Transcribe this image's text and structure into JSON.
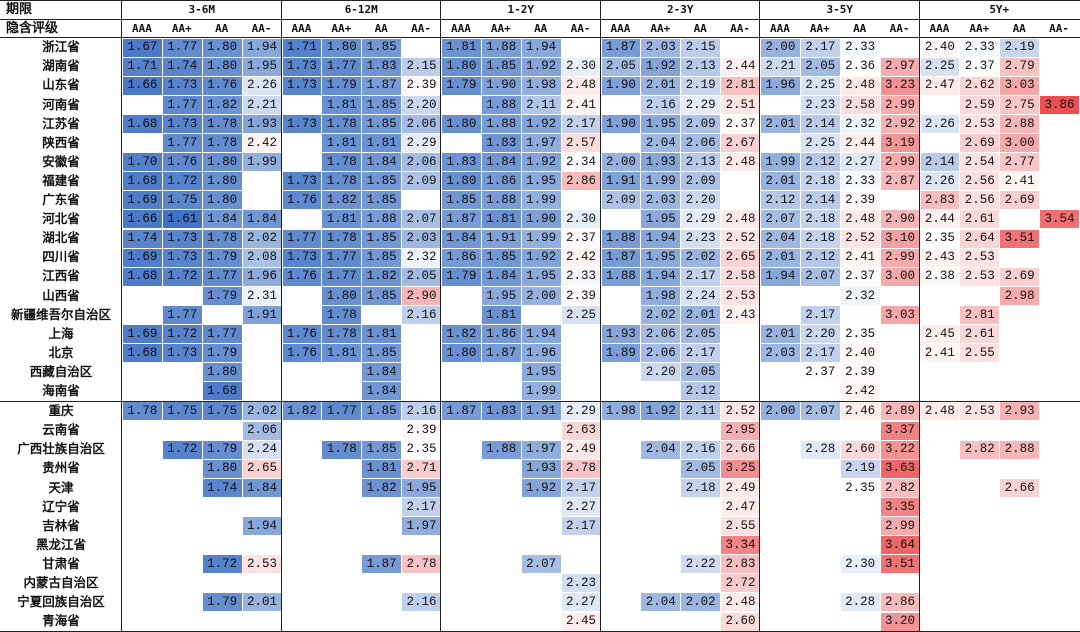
{
  "header": {
    "period_label": "期限",
    "rating_label": "隐含评级",
    "periods": [
      "3-6M",
      "6-12M",
      "1-2Y",
      "2-3Y",
      "3-5Y",
      "5Y+"
    ],
    "ratings": [
      "AAA",
      "AA+",
      "AA",
      "AA-"
    ]
  },
  "colors": {
    "low": "#3f71c4",
    "mid": "#ffffff",
    "high": "#ec4f52",
    "row_separator": "#222222"
  },
  "color_scale": {
    "min": 1.61,
    "mid": 2.35,
    "max": 3.86
  },
  "rows": [
    {
      "name": "浙江省",
      "values": [
        "1.67",
        "1.77",
        "1.80",
        "1.94",
        "1.71",
        "1.80",
        "1.85",
        "",
        "1.81",
        "1.88",
        "1.94",
        "",
        "1.87",
        "2.03",
        "2.15",
        "",
        "2.00",
        "2.17",
        "2.33",
        "",
        "2.40",
        "2.33",
        "2.19",
        ""
      ]
    },
    {
      "name": "湖南省",
      "values": [
        "1.71",
        "1.74",
        "1.80",
        "1.95",
        "1.73",
        "1.77",
        "1.83",
        "2.15",
        "1.80",
        "1.85",
        "1.92",
        "2.30",
        "2.05",
        "1.92",
        "2.13",
        "2.44",
        "2.21",
        "2.05",
        "2.36",
        "2.97",
        "2.25",
        "2.37",
        "2.79",
        ""
      ]
    },
    {
      "name": "山东省",
      "values": [
        "1.66",
        "1.73",
        "1.76",
        "2.26",
        "1.73",
        "1.79",
        "1.87",
        "2.39",
        "1.79",
        "1.90",
        "1.98",
        "2.48",
        "1.90",
        "2.01",
        "2.19",
        "2.81",
        "1.96",
        "2.25",
        "2.48",
        "3.23",
        "2.47",
        "2.62",
        "3.03",
        ""
      ]
    },
    {
      "name": "河南省",
      "values": [
        "",
        "1.77",
        "1.82",
        "2.21",
        "",
        "1.81",
        "1.85",
        "2.20",
        "",
        "1.88",
        "2.11",
        "2.41",
        "",
        "2.16",
        "2.29",
        "2.51",
        "",
        "2.23",
        "2.58",
        "2.99",
        "",
        "2.59",
        "2.75",
        "3.86"
      ]
    },
    {
      "name": "江苏省",
      "values": [
        "1.68",
        "1.73",
        "1.78",
        "1.93",
        "1.73",
        "1.78",
        "1.85",
        "2.06",
        "1.80",
        "1.88",
        "1.92",
        "2.17",
        "1.90",
        "1.95",
        "2.09",
        "2.37",
        "2.01",
        "2.14",
        "2.32",
        "2.92",
        "2.26",
        "2.53",
        "2.88",
        ""
      ]
    },
    {
      "name": "陕西省",
      "values": [
        "",
        "1.77",
        "1.78",
        "2.42",
        "",
        "1.81",
        "1.81",
        "2.29",
        "",
        "1.83",
        "1.97",
        "2.57",
        "",
        "2.04",
        "2.06",
        "2.67",
        "",
        "2.25",
        "2.44",
        "3.19",
        "",
        "2.69",
        "3.00",
        ""
      ]
    },
    {
      "name": "安徽省",
      "values": [
        "1.70",
        "1.76",
        "1.80",
        "1.99",
        "",
        "1.78",
        "1.84",
        "2.06",
        "1.83",
        "1.84",
        "1.92",
        "2.34",
        "2.00",
        "1.93",
        "2.13",
        "2.48",
        "1.99",
        "2.12",
        "2.27",
        "2.99",
        "2.14",
        "2.54",
        "2.77",
        ""
      ]
    },
    {
      "name": "福建省",
      "values": [
        "1.68",
        "1.72",
        "1.80",
        "",
        "1.73",
        "1.78",
        "1.85",
        "2.09",
        "1.80",
        "1.86",
        "1.95",
        "2.86",
        "1.91",
        "1.99",
        "2.09",
        "",
        "2.01",
        "2.18",
        "2.33",
        "2.87",
        "2.26",
        "2.56",
        "2.41",
        ""
      ]
    },
    {
      "name": "广东省",
      "values": [
        "1.69",
        "1.75",
        "1.80",
        "",
        "1.76",
        "1.82",
        "1.85",
        "",
        "1.85",
        "1.88",
        "1.99",
        "",
        "2.09",
        "2.03",
        "2.20",
        "",
        "2.12",
        "2.14",
        "2.39",
        "",
        "2.83",
        "2.56",
        "2.69",
        ""
      ]
    },
    {
      "name": "河北省",
      "values": [
        "1.66",
        "1.61",
        "1.84",
        "1.84",
        "",
        "1.81",
        "1.88",
        "2.07",
        "1.87",
        "1.81",
        "1.90",
        "2.30",
        "",
        "1.95",
        "2.29",
        "2.48",
        "2.07",
        "2.18",
        "2.48",
        "2.90",
        "2.44",
        "2.61",
        "",
        "3.54"
      ]
    },
    {
      "name": "湖北省",
      "values": [
        "1.74",
        "1.73",
        "1.78",
        "2.02",
        "1.77",
        "1.78",
        "1.85",
        "2.03",
        "1.84",
        "1.91",
        "1.99",
        "2.37",
        "1.88",
        "1.94",
        "2.23",
        "2.52",
        "2.04",
        "2.18",
        "2.52",
        "3.10",
        "2.35",
        "2.64",
        "3.51",
        ""
      ]
    },
    {
      "name": "四川省",
      "values": [
        "1.69",
        "1.73",
        "1.79",
        "2.08",
        "1.73",
        "1.77",
        "1.85",
        "2.32",
        "1.86",
        "1.85",
        "1.92",
        "2.42",
        "1.87",
        "1.95",
        "2.02",
        "2.65",
        "2.01",
        "2.12",
        "2.41",
        "2.99",
        "2.43",
        "2.53",
        "",
        ""
      ]
    },
    {
      "name": "江西省",
      "values": [
        "1.68",
        "1.72",
        "1.77",
        "1.96",
        "1.76",
        "1.77",
        "1.82",
        "2.05",
        "1.79",
        "1.84",
        "1.95",
        "2.33",
        "1.88",
        "1.94",
        "2.17",
        "2.58",
        "1.94",
        "2.07",
        "2.37",
        "3.00",
        "2.38",
        "2.53",
        "2.69",
        ""
      ]
    },
    {
      "name": "山西省",
      "values": [
        "",
        "",
        "1.79",
        "2.31",
        "",
        "1.80",
        "1.85",
        "2.90",
        "",
        "1.95",
        "2.00",
        "2.39",
        "",
        "1.98",
        "2.24",
        "2.53",
        "",
        "",
        "2.32",
        "",
        "",
        "",
        "2.98",
        ""
      ]
    },
    {
      "name": "新疆维吾尔自治区",
      "values": [
        "",
        "1.77",
        "",
        "1.91",
        "",
        "1.78",
        "",
        "2.16",
        "",
        "1.81",
        "",
        "2.25",
        "",
        "2.02",
        "2.01",
        "2.43",
        "",
        "2.17",
        "",
        "3.03",
        "",
        "2.81",
        "",
        ""
      ]
    },
    {
      "name": "上海",
      "values": [
        "1.69",
        "1.72",
        "1.77",
        "",
        "1.76",
        "1.78",
        "1.81",
        "",
        "1.82",
        "1.86",
        "1.94",
        "",
        "1.93",
        "2.06",
        "2.05",
        "",
        "2.01",
        "2.20",
        "2.35",
        "",
        "2.45",
        "2.61",
        "",
        ""
      ]
    },
    {
      "name": "北京",
      "values": [
        "1.68",
        "1.73",
        "1.79",
        "",
        "1.76",
        "1.81",
        "1.85",
        "",
        "1.80",
        "1.87",
        "1.96",
        "",
        "1.89",
        "2.06",
        "2.17",
        "",
        "2.03",
        "2.17",
        "2.40",
        "",
        "2.41",
        "2.55",
        "",
        ""
      ]
    },
    {
      "name": "西藏自治区",
      "values": [
        "",
        "",
        "1.80",
        "",
        "",
        "",
        "1.84",
        "",
        "",
        "",
        "1.95",
        "",
        "",
        "2.20",
        "2.05",
        "",
        "",
        "2.37",
        "2.39",
        "",
        "",
        "",
        "",
        ""
      ]
    },
    {
      "name": "海南省",
      "values": [
        "",
        "",
        "1.68",
        "",
        "",
        "",
        "1.84",
        "",
        "",
        "",
        "1.99",
        "",
        "",
        "",
        "2.12",
        "",
        "",
        "",
        "2.42",
        "",
        "",
        "",
        "",
        ""
      ]
    },
    {
      "name": "重庆",
      "values": [
        "1.78",
        "1.75",
        "1.75",
        "2.02",
        "1.82",
        "1.77",
        "1.85",
        "2.16",
        "1.87",
        "1.83",
        "1.91",
        "2.29",
        "1.98",
        "1.92",
        "2.11",
        "2.52",
        "2.00",
        "2.07",
        "2.46",
        "2.89",
        "2.48",
        "2.53",
        "2.93",
        ""
      ]
    },
    {
      "name": "云南省",
      "values": [
        "",
        "",
        "",
        "2.06",
        "",
        "",
        "",
        "2.39",
        "",
        "",
        "",
        "2.63",
        "",
        "",
        "",
        "2.95",
        "",
        "",
        "",
        "3.37",
        "",
        "",
        "",
        ""
      ]
    },
    {
      "name": "广西壮族自治区",
      "values": [
        "",
        "1.72",
        "1.79",
        "2.24",
        "",
        "1.78",
        "1.85",
        "2.35",
        "",
        "1.88",
        "1.97",
        "2.49",
        "",
        "2.04",
        "2.16",
        "2.66",
        "",
        "2.28",
        "2.60",
        "3.22",
        "",
        "2.82",
        "2.88",
        ""
      ]
    },
    {
      "name": "贵州省",
      "values": [
        "",
        "",
        "1.80",
        "2.65",
        "",
        "",
        "1.81",
        "2.71",
        "",
        "",
        "1.93",
        "2.78",
        "",
        "",
        "2.05",
        "3.25",
        "",
        "",
        "2.19",
        "3.63",
        "",
        "",
        "",
        ""
      ]
    },
    {
      "name": "天津",
      "values": [
        "",
        "",
        "1.74",
        "1.84",
        "",
        "",
        "1.82",
        "1.95",
        "",
        "",
        "1.92",
        "2.17",
        "",
        "",
        "2.18",
        "2.49",
        "",
        "",
        "2.35",
        "2.82",
        "",
        "",
        "2.66",
        ""
      ]
    },
    {
      "name": "辽宁省",
      "values": [
        "",
        "",
        "",
        "",
        "",
        "",
        "",
        "2.17",
        "",
        "",
        "",
        "2.27",
        "",
        "",
        "",
        "2.47",
        "",
        "",
        "",
        "3.35",
        "",
        "",
        "",
        ""
      ]
    },
    {
      "name": "吉林省",
      "values": [
        "",
        "",
        "",
        "1.94",
        "",
        "",
        "",
        "1.97",
        "",
        "",
        "",
        "2.17",
        "",
        "",
        "",
        "2.55",
        "",
        "",
        "",
        "2.99",
        "",
        "",
        "",
        ""
      ]
    },
    {
      "name": "黑龙江省",
      "values": [
        "",
        "",
        "",
        "",
        "",
        "",
        "",
        "",
        "",
        "",
        "",
        "",
        "",
        "",
        "",
        "3.34",
        "",
        "",
        "",
        "3.64",
        "",
        "",
        "",
        ""
      ]
    },
    {
      "name": "甘肃省",
      "values": [
        "",
        "",
        "1.72",
        "2.53",
        "",
        "",
        "1.87",
        "2.78",
        "",
        "",
        "2.07",
        "",
        "",
        "",
        "2.22",
        "2.83",
        "",
        "",
        "2.30",
        "3.51",
        "",
        "",
        "",
        ""
      ]
    },
    {
      "name": "内蒙古自治区",
      "values": [
        "",
        "",
        "",
        "",
        "",
        "",
        "",
        "",
        "",
        "",
        "",
        "2.23",
        "",
        "",
        "",
        "2.72",
        "",
        "",
        "",
        "",
        "",
        "",
        "",
        ""
      ]
    },
    {
      "name": "宁夏回族自治区",
      "values": [
        "",
        "",
        "1.79",
        "2.01",
        "",
        "",
        "",
        "2.16",
        "",
        "",
        "",
        "2.27",
        "",
        "2.04",
        "2.02",
        "2.48",
        "",
        "",
        "2.28",
        "2.86",
        "",
        "",
        "",
        ""
      ]
    },
    {
      "name": "青海省",
      "values": [
        "",
        "",
        "",
        "",
        "",
        "",
        "",
        "",
        "",
        "",
        "",
        "2.45",
        "",
        "",
        "",
        "2.60",
        "",
        "",
        "",
        "3.20",
        "",
        "",
        "",
        ""
      ]
    }
  ]
}
